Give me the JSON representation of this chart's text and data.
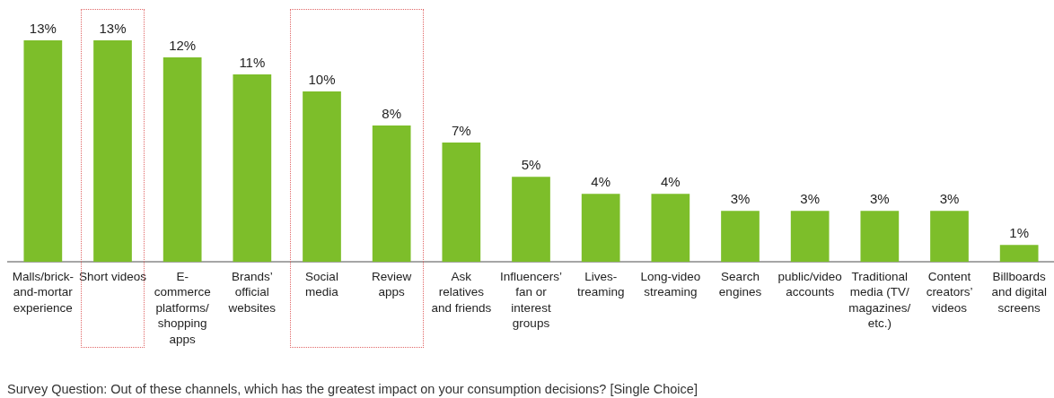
{
  "chart_data": {
    "type": "bar",
    "categories": [
      "Malls/brick-and-mortar experience",
      "Short videos",
      "E-commerce platforms/shopping apps",
      "Brands’ official websites",
      "Social media",
      "Review apps",
      "Ask relatives and friends",
      "Influencers’ fan or interest groups",
      "Lives-treaming",
      "Long-video streaming",
      "Search engines",
      "public/video accounts",
      "Traditional media (TV/magazines/etc.)",
      "Content creators’ videos",
      "Billboards and digital screens"
    ],
    "values": [
      13,
      13,
      12,
      11,
      10,
      8,
      7,
      5,
      4,
      4,
      3,
      3,
      3,
      3,
      1
    ],
    "value_labels": [
      "13%",
      "13%",
      "12%",
      "11%",
      "10%",
      "8%",
      "7%",
      "5%",
      "4%",
      "4%",
      "3%",
      "3%",
      "3%",
      "3%",
      "1%"
    ],
    "color": "#7dbe2a",
    "tick_labels": "x",
    "annotations": [
      "Survey Question: Out of these channels, which has the greatest impact on your consumption decisions? [Single Choice]"
    ]
  }
}
